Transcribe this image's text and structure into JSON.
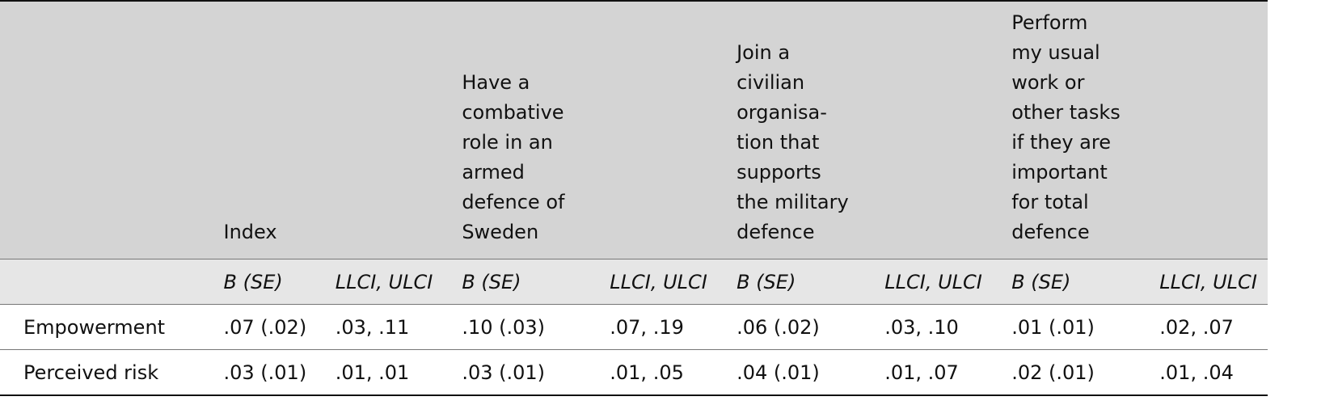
{
  "header": {
    "col_index": "Index",
    "col_combative": "Have a combative role in an armed defence of Sweden",
    "col_civilian": "Join a civilian organisa-tion that supports the military defence",
    "col_work": "Perform my usual work or other tasks if they are important for total defence"
  },
  "subheader": {
    "b_se": "B (SE)",
    "llci_ulci": "LLCI, ULCI"
  },
  "rows": [
    {
      "label": "Empowerment",
      "values": [
        ".07 (.02)",
        ".03, .11",
        ".10 (.03)",
        ".07, .19",
        ".06 (.02)",
        ".03, .10",
        ".01 (.01)",
        ".02, .07"
      ]
    },
    {
      "label": "Perceived risk",
      "values": [
        ".03 (.01)",
        ".01, .01",
        ".03 (.01)",
        ".01, .05",
        ".04 (.01)",
        ".01, .07",
        ".02 (.01)",
        ".01, .04"
      ]
    }
  ]
}
